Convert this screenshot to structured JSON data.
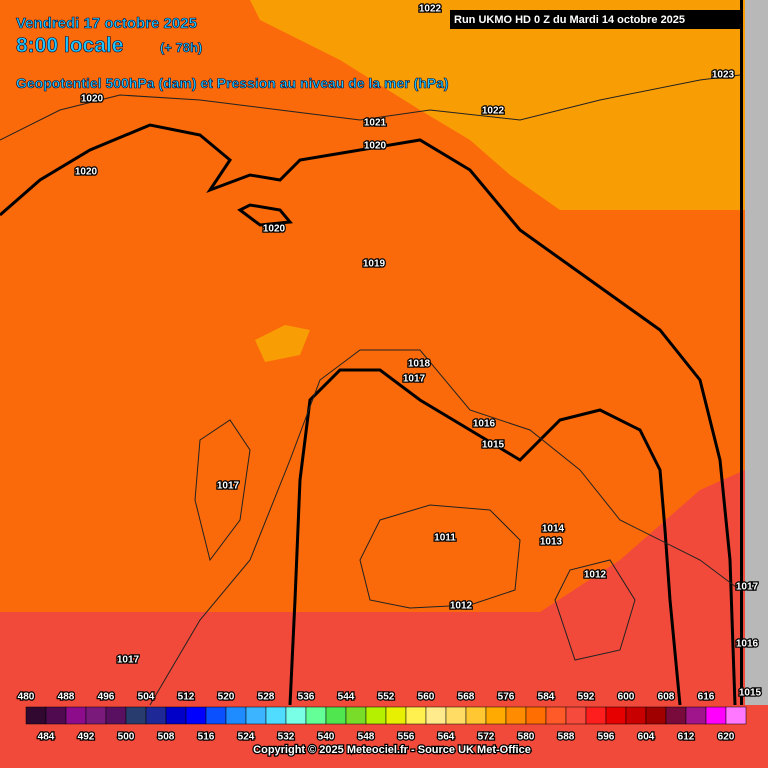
{
  "header": {
    "date": "Vendredi 17 octobre 2025",
    "time": "8:00 locale",
    "lead": "(+ 78h)",
    "subtitle": "Geopotentiel 500hPa (dam) et Pression au niveau de la mer (hPa)",
    "run": "Run UKMO HD 0 Z du Mardi 14 octobre 2025"
  },
  "isobar_labels": [
    "1022",
    "1023",
    "1022",
    "1021",
    "1020",
    "1020",
    "1020",
    "1020",
    "1019",
    "1018",
    "1017",
    "1016",
    "1015",
    "1017",
    "1014",
    "1013",
    "1011",
    "1012",
    "1012",
    "1017",
    "1016",
    "1015",
    "1017"
  ],
  "colorbar": {
    "top_labels": [
      480,
      488,
      496,
      504,
      512,
      520,
      528,
      536,
      544,
      552,
      560,
      568,
      576,
      584,
      592,
      600,
      608,
      616
    ],
    "bottom_labels": [
      484,
      492,
      500,
      508,
      516,
      524,
      532,
      540,
      548,
      556,
      564,
      572,
      580,
      588,
      596,
      604,
      612,
      620
    ],
    "colors": [
      "#300830",
      "#500a50",
      "#8c0c8c",
      "#7a1a7a",
      "#5a1060",
      "#283c6e",
      "#1e2896",
      "#0000c8",
      "#0000ff",
      "#0a50ff",
      "#1e8cff",
      "#3cb4ff",
      "#50dcff",
      "#78ffe6",
      "#64ff96",
      "#50e650",
      "#78dc28",
      "#b4f000",
      "#e6f000",
      "#fff050",
      "#ffeb8c",
      "#ffdc64",
      "#ffc832",
      "#ffaa00",
      "#ff8c00",
      "#ff6e00",
      "#ff5a28",
      "#f54a3c",
      "#ff1e1e",
      "#e60000",
      "#c80000",
      "#a00000",
      "#780a3c",
      "#a0148c",
      "#ff00ff",
      "#ff78ff"
    ]
  },
  "copyright": "Copyright © 2025 Meteociel.fr - Source UK Met-Office"
}
